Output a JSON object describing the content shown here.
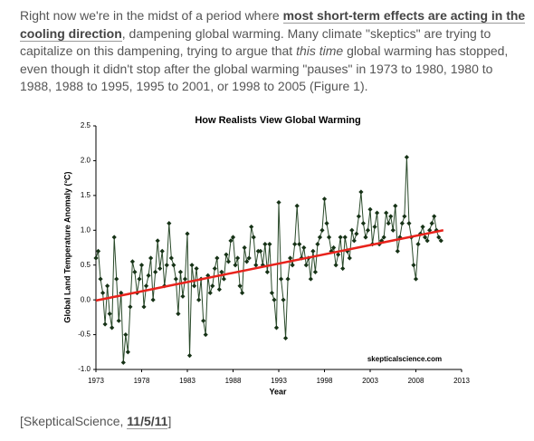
{
  "paragraph": [
    "Right now we're in the  midst of a period where ",
    "most short-term effects are acting in the cooling direction",
    ", dampening global warming.  Many climate \"skeptics\" are trying to capitalize on this dampening, trying to argue that ",
    "this time",
    " global warming has stopped, even though it didn't stop after the global warming \"pauses\" in 1973 to 1980, 1980 to 1988, 1988 to 1995, 1995 to 2001, or 1998 to 2005 (Figure 1)."
  ],
  "footer": [
    "[SkepticalScience, ",
    "11/5/11",
    "]"
  ],
  "chart_data": {
    "type": "line",
    "title": "How Realists View Global Warming",
    "x_label": "Year",
    "y_label": "Global Land Temperature Anomaly (°C)",
    "watermark": "skepticalscience.com",
    "xlim": [
      1973,
      2013
    ],
    "xticks": [
      1973,
      1978,
      1983,
      1988,
      1993,
      1998,
      2003,
      2008,
      2013
    ],
    "ylim": [
      -1.0,
      2.5
    ],
    "yticks": [
      {
        "value": -1.0,
        "label": "-1.0"
      },
      -0.5,
      {
        "value": 0,
        "label": "0.0"
      },
      0.5,
      {
        "value": 1.0,
        "label": "1.0"
      },
      1.5,
      {
        "value": 2.0,
        "label": "2.0"
      },
      2.5
    ],
    "series": [
      {
        "color": "#2a4a2a",
        "markers": true,
        "x": [
          1973,
          1973.25,
          1973.5,
          1973.75,
          1974,
          1974.25,
          1974.5,
          1974.75,
          1975,
          1975.25,
          1975.5,
          1975.75,
          1976,
          1976.25,
          1976.5,
          1976.75,
          1977,
          1977.25,
          1977.5,
          1977.75,
          1978,
          1978.25,
          1978.5,
          1978.75,
          1979,
          1979.25,
          1979.5,
          1979.75,
          1980,
          1980.25,
          1980.5,
          1980.75,
          1981,
          1981.25,
          1981.5,
          1981.75,
          1982,
          1982.25,
          1982.5,
          1982.75,
          1983,
          1983.25,
          1983.5,
          1983.75,
          1984,
          1984.25,
          1984.5,
          1984.75,
          1985,
          1985.25,
          1985.5,
          1985.75,
          1986,
          1986.25,
          1986.5,
          1986.75,
          1987,
          1987.25,
          1987.5,
          1987.75,
          1988,
          1988.25,
          1988.5,
          1988.75,
          1989,
          1989.25,
          1989.5,
          1989.75,
          1990,
          1990.25,
          1990.5,
          1990.75,
          1991,
          1991.25,
          1991.5,
          1991.75,
          1992,
          1992.25,
          1992.5,
          1992.75,
          1993,
          1993.25,
          1993.5,
          1993.75,
          1994,
          1994.25,
          1994.5,
          1994.75,
          1995,
          1995.25,
          1995.5,
          1995.75,
          1996,
          1996.25,
          1996.5,
          1996.75,
          1997,
          1997.25,
          1997.5,
          1997.75,
          1998,
          1998.25,
          1998.5,
          1998.75,
          1999,
          1999.25,
          1999.5,
          1999.75,
          2000,
          2000.25,
          2000.5,
          2000.75,
          2001,
          2001.25,
          2001.5,
          2001.75,
          2002,
          2002.25,
          2002.5,
          2002.75,
          2003,
          2003.25,
          2003.5,
          2003.75,
          2004,
          2004.25,
          2004.5,
          2004.75,
          2005,
          2005.25,
          2005.5,
          2005.75,
          2006,
          2006.25,
          2006.5,
          2006.75,
          2007,
          2007.25,
          2007.5,
          2007.75,
          2008,
          2008.25,
          2008.5,
          2008.75,
          2009,
          2009.25,
          2009.5,
          2009.75,
          2010,
          2010.25,
          2010.5,
          2010.75
        ],
        "values": [
          0.6,
          0.7,
          0.3,
          0.1,
          -0.35,
          0.2,
          -0.2,
          -0.4,
          0.9,
          0.3,
          -0.3,
          0.1,
          -0.9,
          -0.5,
          -0.75,
          -0.1,
          0.55,
          0.4,
          0.1,
          0.3,
          0.5,
          -0.1,
          0.2,
          0.35,
          0.6,
          0.0,
          0.4,
          0.85,
          0.45,
          0.7,
          0.2,
          0.5,
          1.1,
          0.6,
          0.5,
          0.3,
          -0.2,
          0.4,
          0.05,
          0.3,
          0.95,
          -0.8,
          0.5,
          0.2,
          0.45,
          0.0,
          0.3,
          -0.3,
          -0.5,
          0.35,
          0.1,
          0.2,
          0.45,
          0.6,
          0.15,
          0.4,
          0.3,
          0.65,
          0.55,
          0.85,
          0.9,
          0.5,
          0.6,
          0.2,
          0.1,
          0.75,
          0.55,
          0.6,
          1.05,
          0.9,
          0.5,
          0.7,
          0.7,
          0.5,
          0.8,
          0.4,
          0.8,
          0.1,
          0.0,
          -0.4,
          1.4,
          0.3,
          0.0,
          -0.55,
          0.3,
          0.6,
          0.5,
          0.8,
          1.35,
          0.8,
          0.6,
          0.75,
          0.5,
          0.6,
          0.3,
          0.7,
          0.4,
          0.8,
          0.9,
          1.0,
          1.45,
          1.1,
          0.9,
          0.7,
          0.75,
          0.5,
          0.65,
          0.9,
          0.45,
          0.9,
          0.7,
          0.6,
          1.0,
          0.85,
          0.95,
          1.2,
          1.55,
          1.1,
          0.9,
          1.0,
          1.3,
          0.8,
          1.05,
          1.25,
          0.8,
          0.85,
          0.9,
          1.25,
          1.1,
          1.2,
          1.0,
          1.35,
          0.7,
          0.9,
          1.1,
          1.2,
          2.05,
          1.1,
          0.9,
          0.5,
          0.3,
          0.8,
          0.95,
          1.05,
          0.9,
          0.85,
          1.0,
          1.1,
          1.2,
          1.0,
          0.9,
          0.85
        ]
      },
      {
        "color": "#e8221b",
        "markers": false,
        "x": [
          1973,
          2011
        ],
        "values": [
          -0.01,
          1.0
        ]
      }
    ]
  }
}
